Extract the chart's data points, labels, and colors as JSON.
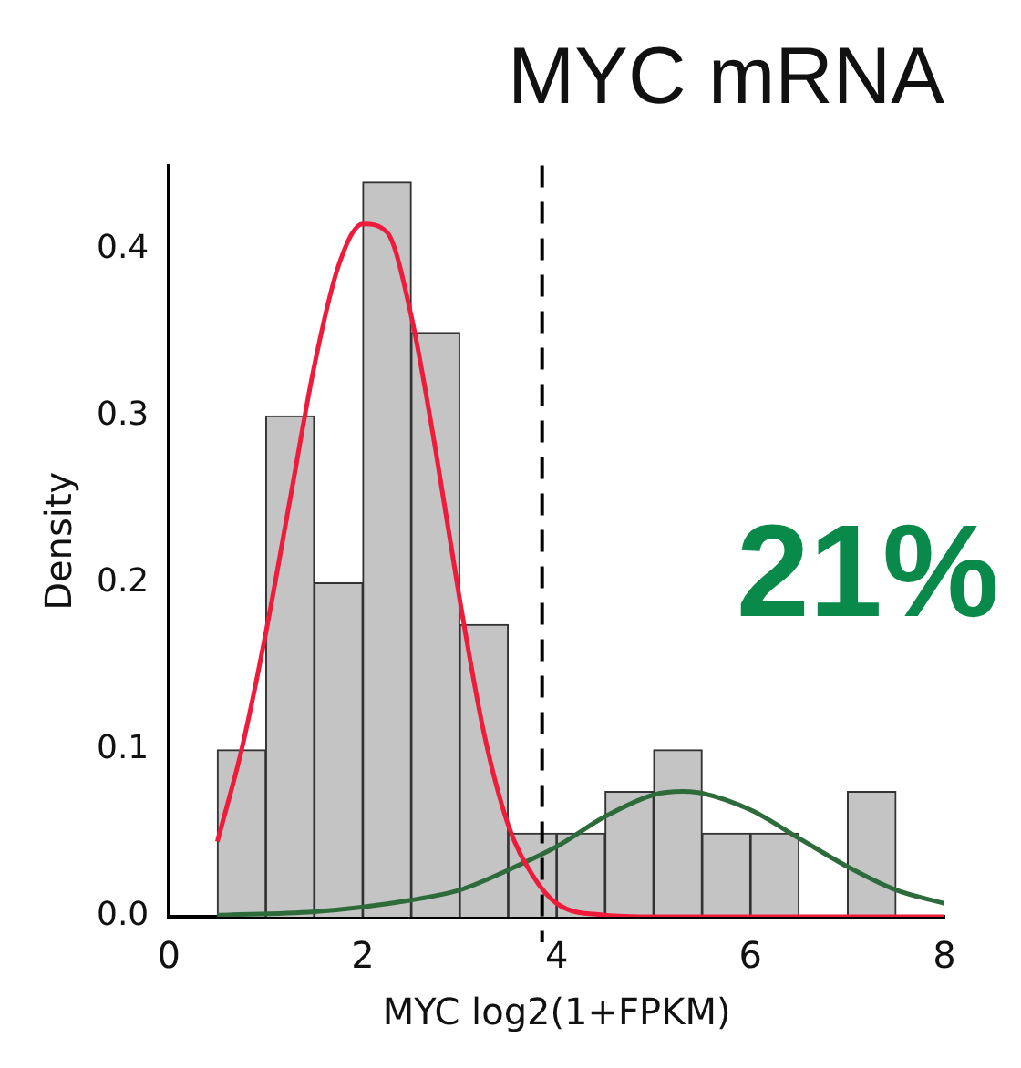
{
  "chart_data": {
    "type": "histogram",
    "title": "MYC mRNA",
    "xlabel": "MYC log2(1+FPKM)",
    "ylabel": "Density",
    "bins": [
      0.5,
      1,
      1.5,
      2,
      2.5,
      3,
      3.5,
      4,
      4.5,
      5,
      5.5,
      6,
      6.5,
      7,
      7.5
    ],
    "values": [
      0.1,
      0.3,
      0.2,
      0.44,
      0.35,
      0.175,
      0.05,
      0.05,
      0.075,
      0.1,
      0.05,
      0.05,
      0,
      0.075
    ],
    "color": "#c4c4c4",
    "series": [
      {
        "type": "line",
        "color": "#ee1c3a",
        "x": [
          0.5,
          0.75,
          1,
          1.25,
          1.5,
          1.75,
          2,
          2.25,
          2.5,
          2.75,
          3,
          3.25,
          3.5,
          3.75,
          4,
          4.5,
          5,
          6,
          7,
          8
        ],
        "values": [
          0.045,
          0.1,
          0.17,
          0.25,
          0.33,
          0.39,
          0.415,
          0.41,
          0.36,
          0.28,
          0.19,
          0.11,
          0.055,
          0.025,
          0.008,
          0.001,
          0,
          0,
          0,
          0
        ]
      },
      {
        "type": "line",
        "color": "#2e6b3a",
        "x": [
          0.5,
          1.5,
          2.5,
          3,
          3.5,
          4,
          4.5,
          5,
          5.3,
          5.5,
          6,
          6.5,
          7,
          7.5,
          8
        ],
        "values": [
          0.001,
          0.003,
          0.01,
          0.016,
          0.028,
          0.042,
          0.06,
          0.073,
          0.075,
          0.074,
          0.064,
          0.047,
          0.03,
          0.016,
          0.008
        ]
      }
    ],
    "xlim": [
      0,
      8
    ],
    "xticks": [
      0,
      2,
      4,
      6,
      8
    ],
    "ylim": [
      0,
      0.45
    ],
    "yticks": [
      {
        "value": 0,
        "label": "0.0"
      },
      {
        "value": 0.1,
        "label": "0.1"
      },
      {
        "value": 0.2,
        "label": "0.2"
      },
      {
        "value": 0.3,
        "label": "0.3"
      },
      {
        "value": 0.4,
        "label": "0.4"
      }
    ],
    "ref_lines": [
      {
        "axis": "x",
        "value": 3.85,
        "color": "#000000",
        "line_style": "dashed"
      }
    ],
    "annotations": [
      "21%"
    ],
    "grid": false,
    "legend": false
  }
}
